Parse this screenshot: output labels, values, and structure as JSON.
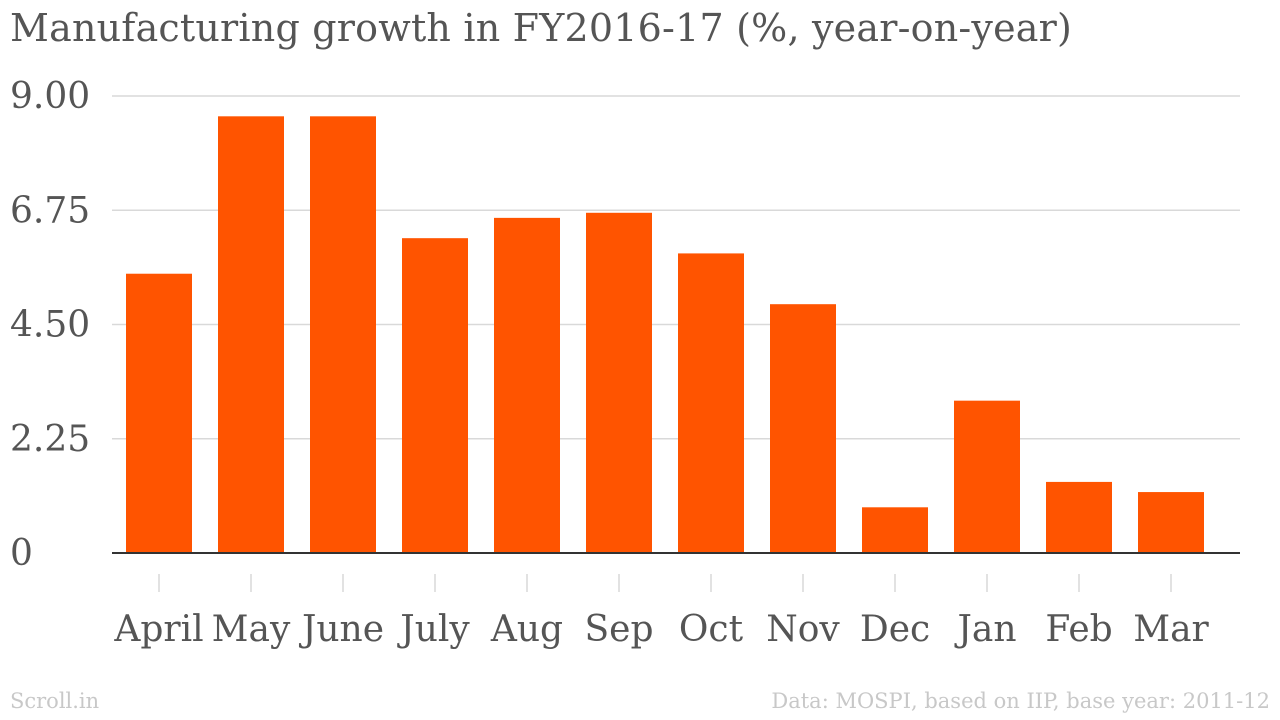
{
  "title": "Manufacturing growth in FY2016-17 (%, year-on-year)",
  "footer": {
    "left": "Scroll.in",
    "right": "Data: MOSPI, based on IIP, base year: 2011-12"
  },
  "colors": {
    "bar": "#ff5400",
    "title": "#555555",
    "axis_text": "#555555",
    "grid": "#d9d9d9",
    "baseline": "#333333",
    "footer": "#c8c8c8"
  },
  "chart_data": {
    "type": "bar",
    "title": "Manufacturing growth in FY2016-17 (%, year-on-year)",
    "xlabel": "",
    "ylabel": "",
    "categories": [
      "April",
      "May",
      "June",
      "July",
      "Aug",
      "Sep",
      "Oct",
      "Nov",
      "Dec",
      "Jan",
      "Feb",
      "Mar"
    ],
    "values": [
      5.5,
      8.6,
      8.6,
      6.2,
      6.6,
      6.7,
      5.9,
      4.9,
      0.9,
      3.0,
      1.4,
      1.2
    ],
    "ylim": [
      0,
      9
    ],
    "yticks": [
      0,
      2.25,
      4.5,
      6.75,
      9
    ],
    "ytick_labels": [
      "0",
      "2.25",
      "4.50",
      "6.75",
      "9.00"
    ],
    "grid": true,
    "legend": "none"
  }
}
